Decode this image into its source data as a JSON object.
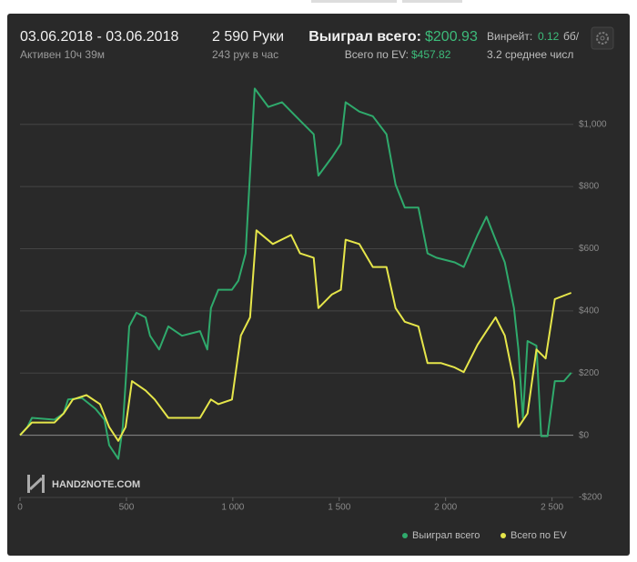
{
  "header": {
    "date_range": "03.06.2018 - 03.06.2018",
    "active": "Активен 10ч 39м",
    "hands": "2 590 Руки",
    "rate": "243 рук в час",
    "won_label": "Выиграл всего:",
    "won_value": "$200.93",
    "ev_label": "Всего по EV:",
    "ev_value": "$457.82",
    "winrate_label": "Винрейт:",
    "winrate_value": "0.12",
    "winrate_unit": "бб/",
    "avg": "3.2 среднее числ"
  },
  "watermark": "HAND2NOTE.COM",
  "chart_data": {
    "type": "line",
    "xlim": [
      0,
      2600
    ],
    "ylim": [
      -200,
      1160
    ],
    "xticks": [
      0,
      500,
      {
        "value": 1000,
        "label": "1 000"
      },
      {
        "value": 1500,
        "label": "1 500"
      },
      {
        "value": 2000,
        "label": "2 000"
      },
      {
        "value": 2500,
        "label": "2 500"
      }
    ],
    "yticks": [
      {
        "value": -200,
        "label": "-$200"
      },
      {
        "value": 0,
        "label": "$0"
      },
      {
        "value": 200,
        "label": "$200"
      },
      {
        "value": 400,
        "label": "$400"
      },
      {
        "value": 600,
        "label": "$600"
      },
      {
        "value": 800,
        "label": "$800"
      },
      {
        "value": 1000,
        "label": "$1,000"
      }
    ],
    "grid": true,
    "series": [
      {
        "name": "Выиграл всего",
        "color": "#2faa6c",
        "x": [
          0,
          34,
          56,
          162,
          205,
          226,
          291,
          355,
          397,
          419,
          462,
          483,
          513,
          547,
          590,
          611,
          654,
          697,
          761,
          846,
          880,
          897,
          932,
          996,
          1026,
          1060,
          1103,
          1167,
          1231,
          1316,
          1380,
          1402,
          1466,
          1508,
          1530,
          1594,
          1658,
          1722,
          1765,
          1808,
          1872,
          1915,
          1957,
          2043,
          2085,
          2150,
          2192,
          2235,
          2278,
          2321,
          2342,
          2363,
          2385,
          2427,
          2449,
          2479,
          2513,
          2556,
          2590
        ],
        "values": [
          0,
          26,
          56,
          50,
          70,
          115,
          120,
          85,
          50,
          -32,
          -76,
          26,
          350,
          394,
          379,
          320,
          276,
          350,
          320,
          335,
          276,
          409,
          468,
          468,
          497,
          585,
          1115,
          1056,
          1071,
          1012,
          968,
          835,
          894,
          938,
          1071,
          1041,
          1026,
          968,
          806,
          732,
          732,
          585,
          571,
          556,
          541,
          644,
          703,
          629,
          556,
          409,
          276,
          56,
          303,
          288,
          -3,
          -3,
          174,
          174,
          201
        ]
      },
      {
        "name": "Всего по EV",
        "color": "#e6e64a",
        "x": [
          0,
          56,
          162,
          205,
          248,
          312,
          376,
          419,
          462,
          496,
          526,
          590,
          633,
          697,
          761,
          846,
          897,
          932,
          996,
          1038,
          1081,
          1111,
          1188,
          1274,
          1316,
          1380,
          1402,
          1466,
          1508,
          1530,
          1594,
          1658,
          1722,
          1765,
          1808,
          1872,
          1915,
          1979,
          2043,
          2085,
          2150,
          2192,
          2235,
          2278,
          2321,
          2342,
          2385,
          2427,
          2470,
          2513,
          2590
        ],
        "values": [
          0,
          41,
          41,
          70,
          115,
          129,
          100,
          26,
          -18,
          26,
          174,
          144,
          115,
          56,
          56,
          56,
          115,
          100,
          115,
          321,
          379,
          659,
          615,
          644,
          585,
          571,
          409,
          453,
          468,
          629,
          615,
          541,
          541,
          409,
          365,
          350,
          232,
          232,
          218,
          203,
          291,
          335,
          379,
          321,
          174,
          26,
          70,
          276,
          247,
          438,
          458
        ]
      }
    ]
  }
}
